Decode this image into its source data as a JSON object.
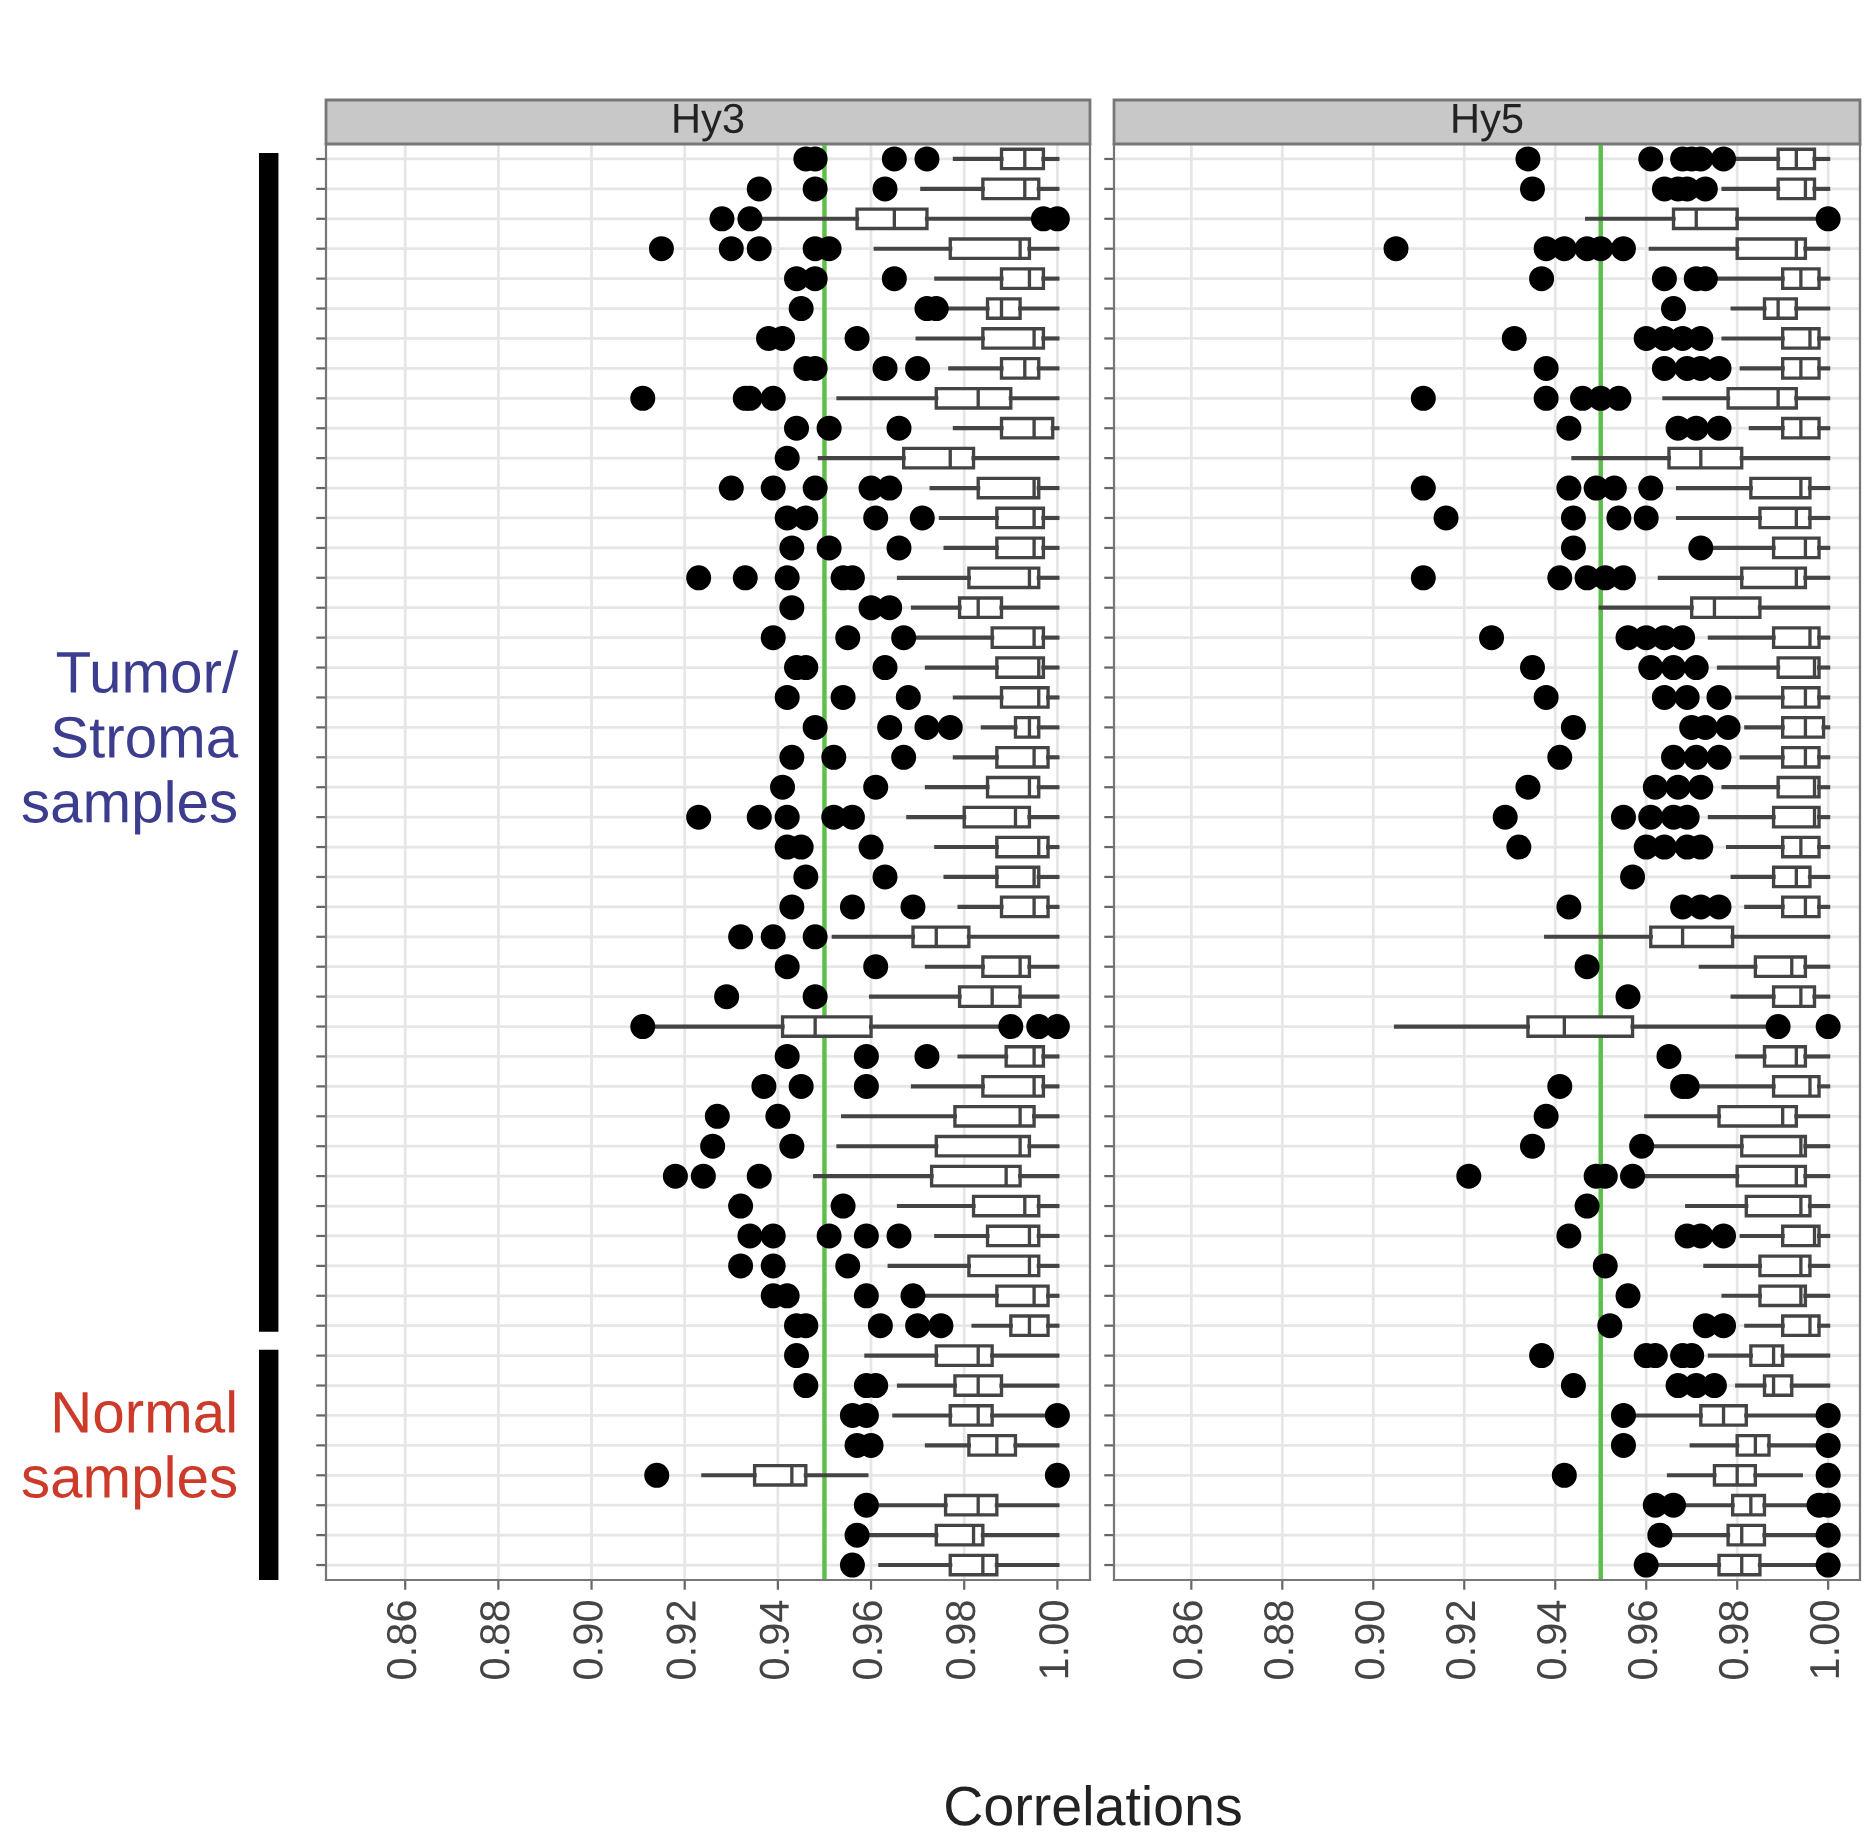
{
  "chart_data": [
    {
      "type": "box",
      "title": "Hy3",
      "xlabel": "Correlations",
      "orientation": "horizontal",
      "tick_labels": "x",
      "grid": true,
      "xlim": [
        0.843,
        1.007
      ],
      "xticks": [
        {
          "value": 0.86,
          "label": "0.86"
        },
        {
          "value": 0.88,
          "label": "0.88"
        },
        {
          "value": 0.9,
          "label": "0.90"
        },
        {
          "value": 0.92,
          "label": "0.92"
        },
        {
          "value": 0.94,
          "label": "0.94"
        },
        {
          "value": 0.96,
          "label": "0.96"
        },
        {
          "value": 0.98,
          "label": "0.98"
        },
        {
          "value": 1.0,
          "label": "1.00"
        }
      ],
      "ref_lines": [
        {
          "axis": "x",
          "value": 0.95,
          "color": "#5cbf4a"
        }
      ],
      "annotations": [
        "Tumor/\nStroma\nsamples",
        "Normal\nsamples"
      ],
      "categories": [
        null,
        null,
        null,
        null,
        null,
        null,
        null,
        null,
        null,
        null,
        null,
        null,
        null,
        null,
        null,
        null,
        null,
        null,
        null,
        null,
        null,
        null,
        null,
        null,
        null,
        null,
        null,
        null,
        null,
        null,
        null,
        null,
        null,
        null,
        null,
        null,
        null,
        null,
        null,
        null,
        null,
        null,
        null,
        null,
        null,
        null,
        null,
        null
      ],
      "boxes": [
        {
          "low": 0.978,
          "q1": 0.988,
          "median": 0.993,
          "q3": 0.997,
          "high": 1.0,
          "outliers": [
            0.946,
            0.948,
            0.965,
            0.972
          ]
        },
        {
          "low": 0.971,
          "q1": 0.984,
          "median": 0.993,
          "q3": 0.996,
          "high": 1.0,
          "outliers": [
            0.936,
            0.948,
            0.963
          ]
        },
        {
          "low": 0.935,
          "q1": 0.957,
          "median": 0.965,
          "q3": 0.972,
          "high": 0.994,
          "outliers": [
            0.928,
            0.934,
            0.997,
            1.0
          ]
        },
        {
          "low": 0.961,
          "q1": 0.977,
          "median": 0.992,
          "q3": 0.994,
          "high": 1.0,
          "outliers": [
            0.915,
            0.93,
            0.936,
            0.948,
            0.951
          ]
        },
        {
          "low": 0.974,
          "q1": 0.988,
          "median": 0.994,
          "q3": 0.997,
          "high": 1.0,
          "outliers": [
            0.944,
            0.948,
            0.965
          ]
        },
        {
          "low": 0.976,
          "q1": 0.985,
          "median": 0.988,
          "q3": 0.992,
          "high": 1.0,
          "outliers": [
            0.945,
            0.972,
            0.974
          ]
        },
        {
          "low": 0.97,
          "q1": 0.984,
          "median": 0.995,
          "q3": 0.997,
          "high": 1.0,
          "outliers": [
            0.938,
            0.941,
            0.957
          ]
        },
        {
          "low": 0.977,
          "q1": 0.988,
          "median": 0.993,
          "q3": 0.996,
          "high": 1.0,
          "outliers": [
            0.946,
            0.948,
            0.963,
            0.97
          ]
        },
        {
          "low": 0.953,
          "q1": 0.974,
          "median": 0.983,
          "q3": 0.99,
          "high": 1.0,
          "outliers": [
            0.911,
            0.933,
            0.934,
            0.939
          ]
        },
        {
          "low": 0.978,
          "q1": 0.988,
          "median": 0.995,
          "q3": 0.999,
          "high": 1.0,
          "outliers": [
            0.944,
            0.951,
            0.966
          ]
        },
        {
          "low": 0.949,
          "q1": 0.967,
          "median": 0.977,
          "q3": 0.982,
          "high": 1.0,
          "outliers": [
            0.942
          ]
        },
        {
          "low": 0.973,
          "q1": 0.983,
          "median": 0.995,
          "q3": 0.996,
          "high": 1.0,
          "outliers": [
            0.93,
            0.939,
            0.948,
            0.96,
            0.964
          ]
        },
        {
          "low": 0.975,
          "q1": 0.987,
          "median": 0.995,
          "q3": 0.997,
          "high": 1.0,
          "outliers": [
            0.942,
            0.946,
            0.961,
            0.971
          ]
        },
        {
          "low": 0.976,
          "q1": 0.987,
          "median": 0.995,
          "q3": 0.997,
          "high": 1.0,
          "outliers": [
            0.943,
            0.951,
            0.966
          ]
        },
        {
          "low": 0.966,
          "q1": 0.981,
          "median": 0.994,
          "q3": 0.996,
          "high": 1.0,
          "outliers": [
            0.923,
            0.933,
            0.942,
            0.954,
            0.956
          ]
        },
        {
          "low": 0.969,
          "q1": 0.979,
          "median": 0.983,
          "q3": 0.988,
          "high": 1.0,
          "outliers": [
            0.943,
            0.96,
            0.964
          ]
        },
        {
          "low": 0.968,
          "q1": 0.986,
          "median": 0.995,
          "q3": 0.997,
          "high": 1.0,
          "outliers": [
            0.939,
            0.955,
            0.967
          ]
        },
        {
          "low": 0.972,
          "q1": 0.987,
          "median": 0.996,
          "q3": 0.997,
          "high": 1.0,
          "outliers": [
            0.944,
            0.946,
            0.963
          ]
        },
        {
          "low": 0.978,
          "q1": 0.988,
          "median": 0.996,
          "q3": 0.998,
          "high": 1.0,
          "outliers": [
            0.942,
            0.954,
            0.968
          ]
        },
        {
          "low": 0.984,
          "q1": 0.991,
          "median": 0.994,
          "q3": 0.996,
          "high": 1.0,
          "outliers": [
            0.948,
            0.964,
            0.972,
            0.977
          ]
        },
        {
          "low": 0.978,
          "q1": 0.987,
          "median": 0.995,
          "q3": 0.998,
          "high": 1.0,
          "outliers": [
            0.943,
            0.952,
            0.967
          ]
        },
        {
          "low": 0.972,
          "q1": 0.985,
          "median": 0.994,
          "q3": 0.996,
          "high": 1.0,
          "outliers": [
            0.941,
            0.961
          ]
        },
        {
          "low": 0.968,
          "q1": 0.98,
          "median": 0.991,
          "q3": 0.994,
          "high": 1.0,
          "outliers": [
            0.923,
            0.936,
            0.942,
            0.952,
            0.956
          ]
        },
        {
          "low": 0.974,
          "q1": 0.987,
          "median": 0.996,
          "q3": 0.998,
          "high": 1.0,
          "outliers": [
            0.942,
            0.945,
            0.96
          ]
        },
        {
          "low": 0.976,
          "q1": 0.987,
          "median": 0.995,
          "q3": 0.996,
          "high": 1.0,
          "outliers": [
            0.946,
            0.963
          ]
        },
        {
          "low": 0.979,
          "q1": 0.988,
          "median": 0.995,
          "q3": 0.998,
          "high": 1.0,
          "outliers": [
            0.943,
            0.956,
            0.969
          ]
        },
        {
          "low": 0.952,
          "q1": 0.969,
          "median": 0.974,
          "q3": 0.981,
          "high": 1.0,
          "outliers": [
            0.932,
            0.939,
            0.948
          ]
        },
        {
          "low": 0.972,
          "q1": 0.984,
          "median": 0.992,
          "q3": 0.994,
          "high": 1.0,
          "outliers": [
            0.942,
            0.961
          ]
        },
        {
          "low": 0.96,
          "q1": 0.979,
          "median": 0.986,
          "q3": 0.992,
          "high": 1.0,
          "outliers": [
            0.929,
            0.948
          ]
        },
        {
          "low": 0.914,
          "q1": 0.941,
          "median": 0.948,
          "q3": 0.96,
          "high": 0.987,
          "outliers": [
            0.911,
            0.99,
            0.996,
            1.0
          ]
        },
        {
          "low": 0.979,
          "q1": 0.989,
          "median": 0.995,
          "q3": 0.997,
          "high": 1.0,
          "outliers": [
            0.942,
            0.959,
            0.972
          ]
        },
        {
          "low": 0.969,
          "q1": 0.984,
          "median": 0.995,
          "q3": 0.997,
          "high": 1.0,
          "outliers": [
            0.937,
            0.945,
            0.959
          ]
        },
        {
          "low": 0.954,
          "q1": 0.978,
          "median": 0.992,
          "q3": 0.995,
          "high": 1.0,
          "outliers": [
            0.927,
            0.94
          ]
        },
        {
          "low": 0.953,
          "q1": 0.974,
          "median": 0.992,
          "q3": 0.994,
          "high": 1.0,
          "outliers": [
            0.926,
            0.943
          ]
        },
        {
          "low": 0.948,
          "q1": 0.973,
          "median": 0.989,
          "q3": 0.992,
          "high": 1.0,
          "outliers": [
            0.918,
            0.924,
            0.936
          ]
        },
        {
          "low": 0.966,
          "q1": 0.982,
          "median": 0.993,
          "q3": 0.996,
          "high": 1.0,
          "outliers": [
            0.932,
            0.954
          ]
        },
        {
          "low": 0.974,
          "q1": 0.985,
          "median": 0.994,
          "q3": 0.996,
          "high": 1.0,
          "outliers": [
            0.934,
            0.939,
            0.951,
            0.959,
            0.966
          ]
        },
        {
          "low": 0.964,
          "q1": 0.981,
          "median": 0.994,
          "q3": 0.996,
          "high": 1.0,
          "outliers": [
            0.932,
            0.939,
            0.955
          ]
        },
        {
          "low": 0.971,
          "q1": 0.987,
          "median": 0.995,
          "q3": 0.998,
          "high": 1.0,
          "outliers": [
            0.939,
            0.942,
            0.959,
            0.969
          ]
        },
        {
          "low": 0.982,
          "q1": 0.99,
          "median": 0.994,
          "q3": 0.998,
          "high": 1.0,
          "outliers": [
            0.944,
            0.946,
            0.962,
            0.97,
            0.975
          ]
        },
        {
          "low": 0.959,
          "q1": 0.974,
          "median": 0.983,
          "q3": 0.986,
          "high": 1.0,
          "outliers": [
            0.944
          ]
        },
        {
          "low": 0.966,
          "q1": 0.978,
          "median": 0.983,
          "q3": 0.988,
          "high": 1.0,
          "outliers": [
            0.946,
            0.959,
            0.961
          ]
        },
        {
          "low": 0.965,
          "q1": 0.977,
          "median": 0.983,
          "q3": 0.986,
          "high": 0.997,
          "outliers": [
            0.956,
            0.959,
            1.0
          ]
        },
        {
          "low": 0.972,
          "q1": 0.981,
          "median": 0.987,
          "q3": 0.991,
          "high": 1.0,
          "outliers": [
            0.957,
            0.96
          ]
        },
        {
          "low": 0.924,
          "q1": 0.935,
          "median": 0.943,
          "q3": 0.946,
          "high": 0.959,
          "outliers": [
            0.914,
            1.0
          ]
        },
        {
          "low": 0.962,
          "q1": 0.976,
          "median": 0.983,
          "q3": 0.987,
          "high": 1.0,
          "outliers": [
            0.959
          ]
        },
        {
          "low": 0.96,
          "q1": 0.974,
          "median": 0.982,
          "q3": 0.984,
          "high": 1.0,
          "outliers": [
            0.957
          ]
        },
        {
          "low": 0.962,
          "q1": 0.977,
          "median": 0.984,
          "q3": 0.987,
          "high": 1.0,
          "outliers": [
            0.956
          ]
        }
      ]
    },
    {
      "type": "box",
      "title": "Hy5",
      "orientation": "horizontal",
      "tick_labels": "x",
      "grid": true,
      "xlim": [
        0.843,
        1.007
      ],
      "xticks": [
        {
          "value": 0.86,
          "label": "0.86"
        },
        {
          "value": 0.88,
          "label": "0.88"
        },
        {
          "value": 0.9,
          "label": "0.90"
        },
        {
          "value": 0.92,
          "label": "0.92"
        },
        {
          "value": 0.94,
          "label": "0.94"
        },
        {
          "value": 0.96,
          "label": "0.96"
        },
        {
          "value": 0.98,
          "label": "0.98"
        },
        {
          "value": 1.0,
          "label": "1.00"
        }
      ],
      "ref_lines": [
        {
          "axis": "x",
          "value": 0.95,
          "color": "#5cbf4a"
        }
      ],
      "categories": [
        null,
        null,
        null,
        null,
        null,
        null,
        null,
        null,
        null,
        null,
        null,
        null,
        null,
        null,
        null,
        null,
        null,
        null,
        null,
        null,
        null,
        null,
        null,
        null,
        null,
        null,
        null,
        null,
        null,
        null,
        null,
        null,
        null,
        null,
        null,
        null,
        null,
        null,
        null,
        null,
        null,
        null,
        null,
        null,
        null,
        null,
        null,
        null
      ],
      "boxes": [
        {
          "low": 0.979,
          "q1": 0.989,
          "median": 0.993,
          "q3": 0.997,
          "high": 1.0,
          "outliers": [
            0.934,
            0.961,
            0.968,
            0.97,
            0.972,
            0.977
          ]
        },
        {
          "low": 0.977,
          "q1": 0.989,
          "median": 0.995,
          "q3": 0.997,
          "high": 1.0,
          "outliers": [
            0.935,
            0.964,
            0.967,
            0.969,
            0.973
          ]
        },
        {
          "low": 0.947,
          "q1": 0.966,
          "median": 0.971,
          "q3": 0.98,
          "high": 0.997,
          "outliers": [
            1.0
          ]
        },
        {
          "low": 0.961,
          "q1": 0.98,
          "median": 0.993,
          "q3": 0.995,
          "high": 1.0,
          "outliers": [
            0.905,
            0.938,
            0.942,
            0.947,
            0.95,
            0.955
          ]
        },
        {
          "low": 0.975,
          "q1": 0.99,
          "median": 0.994,
          "q3": 0.998,
          "high": 1.0,
          "outliers": [
            0.937,
            0.964,
            0.971,
            0.973
          ]
        },
        {
          "low": 0.979,
          "q1": 0.986,
          "median": 0.989,
          "q3": 0.993,
          "high": 1.0,
          "outliers": [
            0.966
          ]
        },
        {
          "low": 0.977,
          "q1": 0.99,
          "median": 0.996,
          "q3": 0.998,
          "high": 1.0,
          "outliers": [
            0.931,
            0.96,
            0.964,
            0.968,
            0.972
          ]
        },
        {
          "low": 0.981,
          "q1": 0.99,
          "median": 0.994,
          "q3": 0.998,
          "high": 1.0,
          "outliers": [
            0.938,
            0.964,
            0.969,
            0.972,
            0.976
          ]
        },
        {
          "low": 0.964,
          "q1": 0.978,
          "median": 0.989,
          "q3": 0.993,
          "high": 1.0,
          "outliers": [
            0.911,
            0.938,
            0.946,
            0.95,
            0.954
          ]
        },
        {
          "low": 0.983,
          "q1": 0.99,
          "median": 0.994,
          "q3": 0.998,
          "high": 1.0,
          "outliers": [
            0.943,
            0.967,
            0.971,
            0.976
          ]
        },
        {
          "low": 0.944,
          "q1": 0.965,
          "median": 0.972,
          "q3": 0.981,
          "high": 1.0
        },
        {
          "low": 0.967,
          "q1": 0.983,
          "median": 0.994,
          "q3": 0.996,
          "high": 1.0,
          "outliers": [
            0.911,
            0.943,
            0.949,
            0.953,
            0.961
          ]
        },
        {
          "low": 0.967,
          "q1": 0.985,
          "median": 0.993,
          "q3": 0.996,
          "high": 1.0,
          "outliers": [
            0.916,
            0.944,
            0.954,
            0.96
          ]
        },
        {
          "low": 0.974,
          "q1": 0.988,
          "median": 0.995,
          "q3": 0.998,
          "high": 1.0,
          "outliers": [
            0.944,
            0.972
          ]
        },
        {
          "low": 0.963,
          "q1": 0.981,
          "median": 0.993,
          "q3": 0.995,
          "high": 1.0,
          "outliers": [
            0.911,
            0.941,
            0.947,
            0.951,
            0.955
          ]
        },
        {
          "low": 0.95,
          "q1": 0.97,
          "median": 0.975,
          "q3": 0.985,
          "high": 1.0
        },
        {
          "low": 0.974,
          "q1": 0.988,
          "median": 0.996,
          "q3": 0.998,
          "high": 1.0,
          "outliers": [
            0.926,
            0.956,
            0.96,
            0.964,
            0.968
          ]
        },
        {
          "low": 0.976,
          "q1": 0.989,
          "median": 0.997,
          "q3": 0.998,
          "high": 1.0,
          "outliers": [
            0.935,
            0.961,
            0.966,
            0.971
          ]
        },
        {
          "low": 0.98,
          "q1": 0.99,
          "median": 0.995,
          "q3": 0.998,
          "high": 1.0,
          "outliers": [
            0.938,
            0.964,
            0.969,
            0.976
          ]
        },
        {
          "low": 0.982,
          "q1": 0.99,
          "median": 0.995,
          "q3": 0.999,
          "high": 1.0,
          "outliers": [
            0.944,
            0.97,
            0.973,
            0.978
          ]
        },
        {
          "low": 0.981,
          "q1": 0.99,
          "median": 0.995,
          "q3": 0.998,
          "high": 1.0,
          "outliers": [
            0.941,
            0.966,
            0.971,
            0.976
          ]
        },
        {
          "low": 0.977,
          "q1": 0.989,
          "median": 0.997,
          "q3": 0.998,
          "high": 1.0,
          "outliers": [
            0.934,
            0.962,
            0.967,
            0.972
          ]
        },
        {
          "low": 0.974,
          "q1": 0.988,
          "median": 0.997,
          "q3": 0.998,
          "high": 1.0,
          "outliers": [
            0.929,
            0.955,
            0.961,
            0.966,
            0.969
          ]
        },
        {
          "low": 0.978,
          "q1": 0.99,
          "median": 0.994,
          "q3": 0.998,
          "high": 1.0,
          "outliers": [
            0.932,
            0.96,
            0.964,
            0.969,
            0.972
          ]
        },
        {
          "low": 0.979,
          "q1": 0.988,
          "median": 0.993,
          "q3": 0.996,
          "high": 1.0,
          "outliers": [
            0.957
          ]
        },
        {
          "low": 0.982,
          "q1": 0.99,
          "median": 0.995,
          "q3": 0.998,
          "high": 1.0,
          "outliers": [
            0.943,
            0.968,
            0.972,
            0.976
          ]
        },
        {
          "low": 0.938,
          "q1": 0.961,
          "median": 0.968,
          "q3": 0.979,
          "high": 1.0
        },
        {
          "low": 0.972,
          "q1": 0.984,
          "median": 0.992,
          "q3": 0.995,
          "high": 1.0,
          "outliers": [
            0.947
          ]
        },
        {
          "low": 0.979,
          "q1": 0.988,
          "median": 0.994,
          "q3": 0.997,
          "high": 1.0,
          "outliers": [
            0.956
          ]
        },
        {
          "low": 0.905,
          "q1": 0.934,
          "median": 0.942,
          "q3": 0.957,
          "high": 0.987,
          "outliers": [
            0.989,
            1.0
          ]
        },
        {
          "low": 0.98,
          "q1": 0.986,
          "median": 0.993,
          "q3": 0.995,
          "high": 1.0,
          "outliers": [
            0.965
          ]
        },
        {
          "low": 0.972,
          "q1": 0.988,
          "median": 0.996,
          "q3": 0.998,
          "high": 1.0,
          "outliers": [
            0.941,
            0.968,
            0.969
          ]
        },
        {
          "low": 0.96,
          "q1": 0.976,
          "median": 0.99,
          "q3": 0.993,
          "high": 1.0,
          "outliers": [
            0.938
          ]
        },
        {
          "low": 0.961,
          "q1": 0.981,
          "median": 0.994,
          "q3": 0.995,
          "high": 1.0,
          "outliers": [
            0.935,
            0.959
          ]
        },
        {
          "low": 0.959,
          "q1": 0.98,
          "median": 0.993,
          "q3": 0.995,
          "high": 1.0,
          "outliers": [
            0.921,
            0.949,
            0.951,
            0.957
          ]
        },
        {
          "low": 0.969,
          "q1": 0.982,
          "median": 0.994,
          "q3": 0.996,
          "high": 1.0,
          "outliers": [
            0.947
          ]
        },
        {
          "low": 0.981,
          "q1": 0.99,
          "median": 0.997,
          "q3": 0.998,
          "high": 1.0,
          "outliers": [
            0.943,
            0.969,
            0.972,
            0.977
          ]
        },
        {
          "low": 0.973,
          "q1": 0.985,
          "median": 0.994,
          "q3": 0.996,
          "high": 1.0,
          "outliers": [
            0.951
          ]
        },
        {
          "low": 0.977,
          "q1": 0.985,
          "median": 0.994,
          "q3": 0.995,
          "high": 1.0,
          "outliers": [
            0.956
          ]
        },
        {
          "low": 0.982,
          "q1": 0.99,
          "median": 0.996,
          "q3": 0.998,
          "high": 1.0,
          "outliers": [
            0.952,
            0.973,
            0.977
          ]
        },
        {
          "low": 0.974,
          "q1": 0.983,
          "median": 0.988,
          "q3": 0.99,
          "high": 1.0,
          "outliers": [
            0.937,
            0.96,
            0.962,
            0.968,
            0.97
          ]
        },
        {
          "low": 0.98,
          "q1": 0.986,
          "median": 0.988,
          "q3": 0.992,
          "high": 1.0,
          "outliers": [
            0.944,
            0.967,
            0.971,
            0.975
          ]
        },
        {
          "low": 0.956,
          "q1": 0.972,
          "median": 0.977,
          "q3": 0.982,
          "high": 0.999,
          "outliers": [
            0.955,
            1.0
          ]
        },
        {
          "low": 0.97,
          "q1": 0.98,
          "median": 0.984,
          "q3": 0.987,
          "high": 0.998,
          "outliers": [
            0.955,
            1.0
          ]
        },
        {
          "low": 0.965,
          "q1": 0.975,
          "median": 0.98,
          "q3": 0.984,
          "high": 0.994,
          "outliers": [
            0.942,
            1.0
          ]
        },
        {
          "low": 0.968,
          "q1": 0.979,
          "median": 0.983,
          "q3": 0.986,
          "high": 0.996,
          "outliers": [
            0.962,
            0.966,
            0.998,
            1.0
          ]
        },
        {
          "low": 0.965,
          "q1": 0.978,
          "median": 0.981,
          "q3": 0.986,
          "high": 0.999,
          "outliers": [
            0.963,
            1.0
          ]
        },
        {
          "low": 0.962,
          "q1": 0.976,
          "median": 0.981,
          "q3": 0.985,
          "high": 0.999,
          "outliers": [
            0.96,
            1.0
          ]
        }
      ]
    }
  ]
}
